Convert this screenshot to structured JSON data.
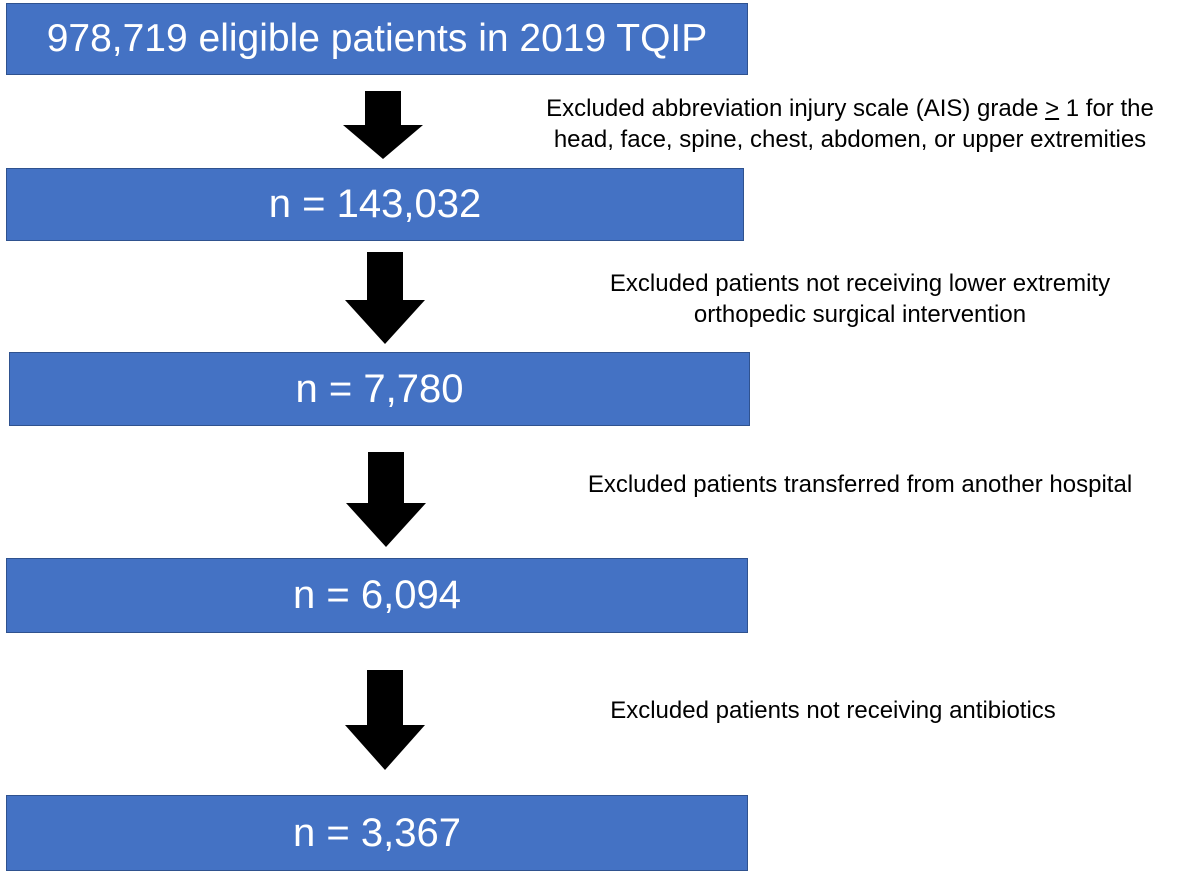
{
  "flow_boxes": [
    {
      "label": "978,719 eligible patients in 2019 TQIP"
    },
    {
      "label": "n = 143,032"
    },
    {
      "label": "n = 7,780"
    },
    {
      "label": "n = 6,094"
    },
    {
      "label": "n = 3,367"
    }
  ],
  "exclusions": [
    {
      "line1_before": "Excluded abbreviation injury scale (AIS) grade ",
      "line1_symbol": ">",
      "line1_after": " 1 for the",
      "line2": "head, face, spine, chest, abdomen, or upper extremities"
    },
    {
      "line1": "Excluded patients not receiving lower extremity",
      "line2": "orthopedic surgical intervention"
    },
    {
      "line1": "Excluded patients transferred from another hospital"
    },
    {
      "line1": "Excluded patients not receiving antibiotics"
    }
  ],
  "colors": {
    "box_fill": "#4472c4",
    "box_border": "#2f528f",
    "box_text": "#ffffff",
    "arrow": "#000000",
    "note_text": "#000000"
  },
  "icons": {
    "connector": "down-arrow-icon"
  }
}
